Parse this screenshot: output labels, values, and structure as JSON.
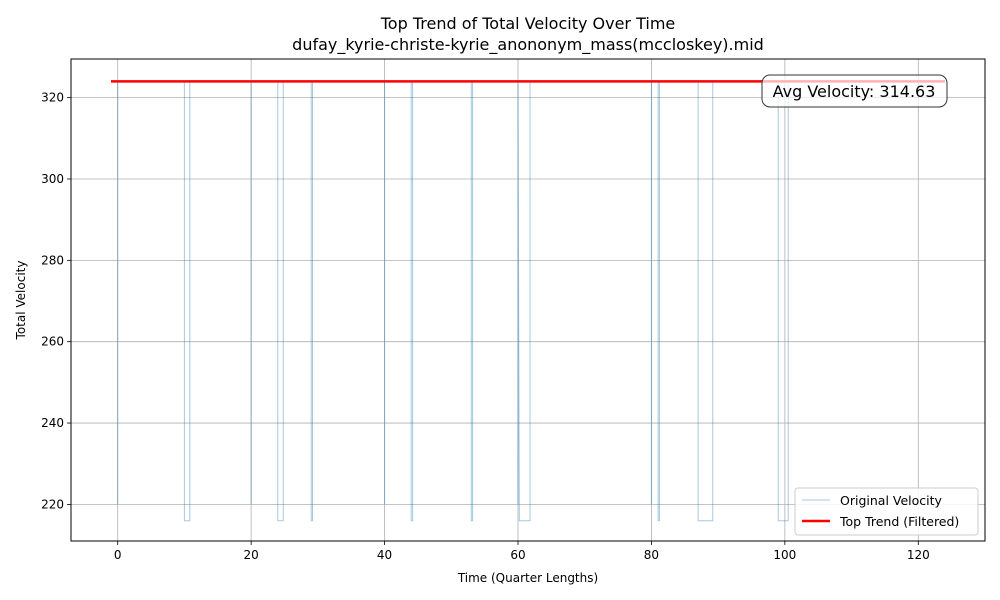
{
  "chart_data": {
    "type": "line",
    "title": "Top Trend of Total Velocity Over Time",
    "subtitle": "dufay_kyrie-christe-kyrie_anononym_mass(mccloskey).mid",
    "xlabel": "Time (Quarter Lengths)",
    "ylabel": "Total Velocity",
    "xlim": [
      -7,
      130
    ],
    "ylim": [
      211,
      329.5
    ],
    "xticks": [
      0,
      20,
      40,
      60,
      80,
      100,
      120
    ],
    "yticks": [
      220,
      240,
      260,
      280,
      300,
      320
    ],
    "grid": true,
    "legend_position": "lower-right",
    "annotation": "Avg Velocity: 314.63",
    "series": [
      {
        "name": "Original Velocity",
        "color": "#1f77b4",
        "x": [
          0,
          0,
          0,
          10,
          10,
          10.8,
          10.8,
          20,
          20,
          20,
          24,
          24,
          24.8,
          24.8,
          29,
          29,
          29.2,
          29.2,
          40,
          40,
          40,
          44,
          44,
          44.2,
          44.2,
          53,
          53,
          53.2,
          53.2,
          60,
          60,
          60,
          60.2,
          60.2,
          61.8,
          61.8,
          80,
          80,
          80,
          81,
          81,
          81.2,
          81.2,
          87,
          87,
          89.2,
          89.2,
          99,
          99,
          100.5,
          100.5,
          124
        ],
        "y": [
          220,
          324,
          324,
          324,
          216,
          216,
          324,
          324,
          220,
          324,
          324,
          216,
          216,
          324,
          324,
          216,
          216,
          324,
          324,
          220,
          324,
          324,
          216,
          216,
          324,
          324,
          216,
          216,
          324,
          324,
          220,
          324,
          216,
          216,
          216,
          324,
          324,
          220,
          324,
          324,
          216,
          216,
          324,
          324,
          216,
          216,
          324,
          324,
          216,
          216,
          324,
          324
        ]
      },
      {
        "name": "Top Trend (Filtered)",
        "color": "#ff0000",
        "x": [
          -1,
          124
        ],
        "y": [
          324,
          324
        ]
      }
    ]
  }
}
